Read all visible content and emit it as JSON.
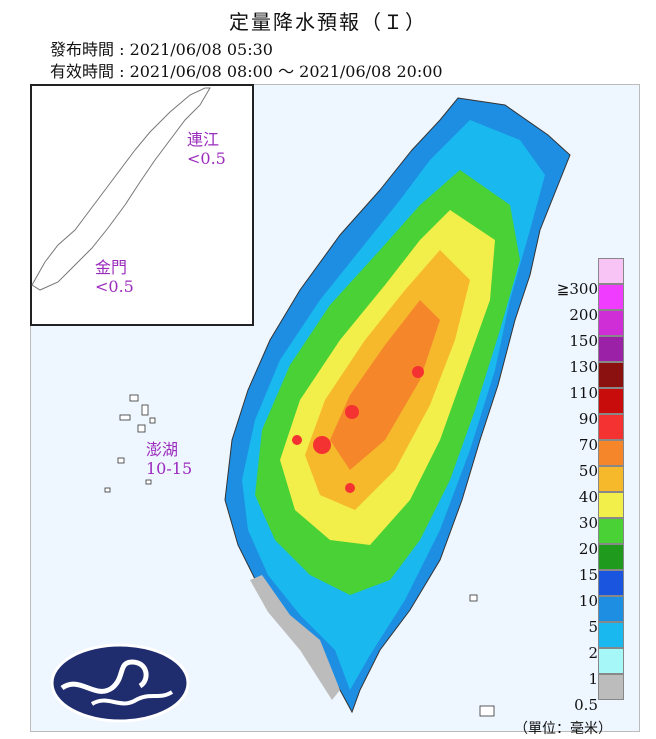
{
  "header": {
    "title": "定量降水預報（Ｉ）",
    "issue_time": "發布時間 : 2021/06/08 05:30",
    "valid_time": "有效時間 : 2021/06/08 08:00 ～ 2021/06/08 20:00"
  },
  "labels": {
    "lienchiang_name": "連江",
    "lienchiang_value": "<0.5",
    "kinmen_name": "金門",
    "kinmen_value": "<0.5",
    "penghu_name": "澎湖",
    "penghu_value": "10-15"
  },
  "legend": {
    "unit": "（單位：毫米）",
    "ticks": [
      "≧300",
      "200",
      "150",
      "130",
      "110",
      "90",
      "70",
      "50",
      "40",
      "30",
      "20",
      "15",
      "10",
      "5",
      "2",
      "1",
      "0.5"
    ],
    "colors": [
      "#f7c4f5",
      "#ef3cff",
      "#cf2ed6",
      "#9b22a6",
      "#8b1010",
      "#c80c0c",
      "#f53232",
      "#f5862a",
      "#f6b92c",
      "#f3ef4a",
      "#49d135",
      "#1f9a1d",
      "#1a55e0",
      "#1e8ee3",
      "#19b8ee",
      "#a6f7f8",
      "#bcbcbc"
    ]
  },
  "colors": {
    "label_purple": "#9b2bbd",
    "logo_navy": "#1f2c6e"
  }
}
